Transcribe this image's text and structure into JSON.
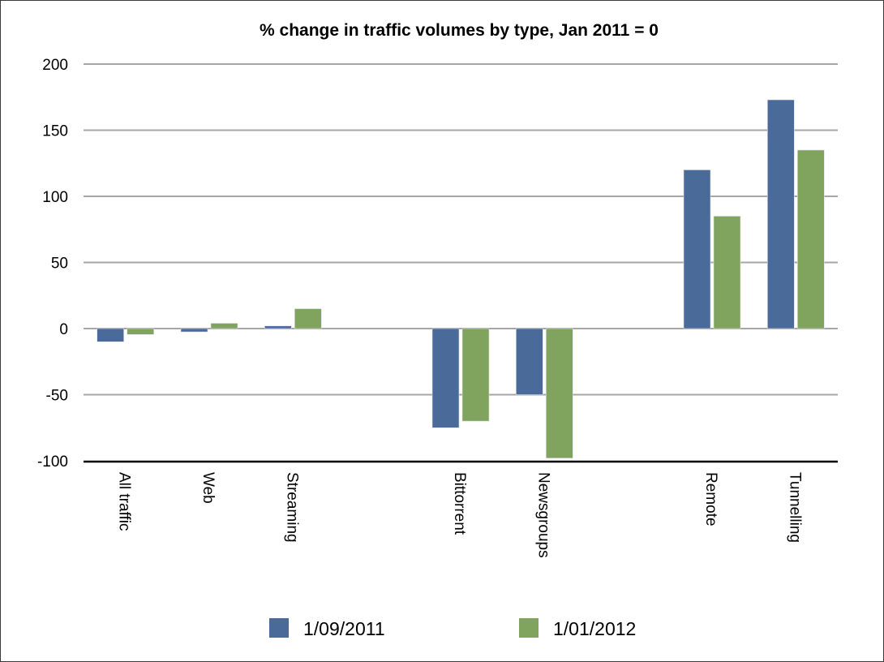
{
  "chart_data": {
    "type": "bar",
    "title": "% change in traffic volumes by type, Jan 2011 = 0",
    "xlabel": "",
    "ylabel": "",
    "ylim": [
      -100,
      200
    ],
    "yticks": [
      200,
      150,
      100,
      50,
      0,
      -50,
      -100
    ],
    "ytick_labels": [
      "200",
      "150",
      "100",
      "50",
      "0",
      "-50",
      "-100"
    ],
    "grid": true,
    "legend_position": "bottom",
    "category_label_rotation": "vertical (rotated 90° clockwise)",
    "categories": [
      "All traffic",
      "Web",
      "Streaming",
      "",
      "Bittorrent",
      "Newsgroups",
      "",
      "Remote",
      "Tunnelling"
    ],
    "series": [
      {
        "name": "1/09/2011",
        "color": "#4a6a9a",
        "values": [
          -10,
          -2.5,
          2,
          null,
          -75,
          -50,
          null,
          120,
          173
        ]
      },
      {
        "name": "1/01/2012",
        "color": "#80a35e",
        "values": [
          -4.5,
          4,
          15,
          null,
          -70,
          -98,
          null,
          85,
          135
        ]
      }
    ]
  }
}
